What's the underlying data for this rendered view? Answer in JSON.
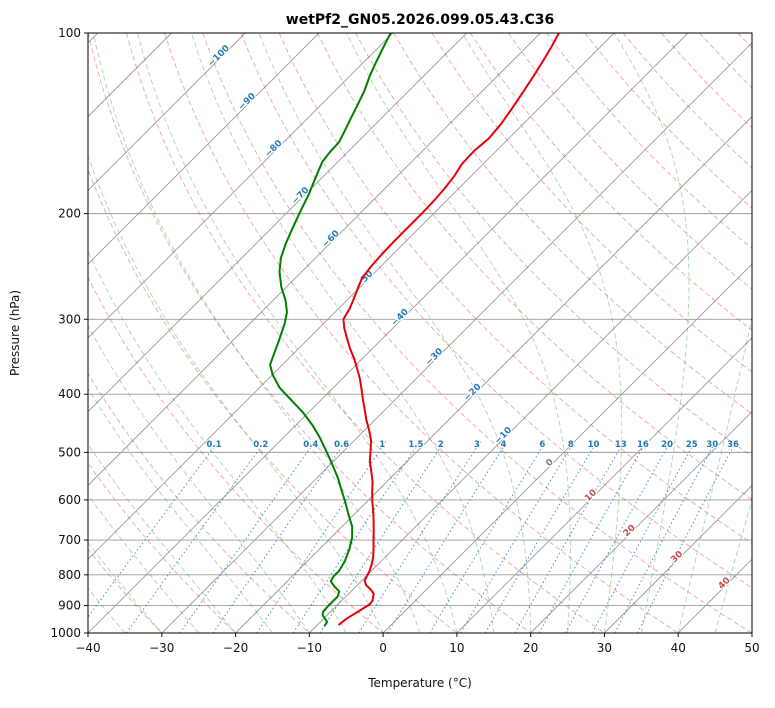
{
  "title": "wetPf2_GN05.2026.099.05.43.C36",
  "chart_data": {
    "type": "line",
    "variant": "skew-t-log-p",
    "title": "wetPf2_GN05.2026.099.05.43.C36",
    "xlabel": "Temperature (°C)",
    "ylabel": "Pressure (hPa)",
    "xlim": [
      -40,
      50
    ],
    "pressure_lim": [
      100,
      1000
    ],
    "skew_deg": 45,
    "x_ticks": [
      -40,
      -30,
      -20,
      -10,
      0,
      10,
      20,
      30,
      40,
      50
    ],
    "pressure_ticks": [
      100,
      200,
      300,
      400,
      500,
      600,
      700,
      800,
      900,
      1000
    ],
    "grid_color": "#9b9b9b",
    "isotherms": {
      "start": -120,
      "end": 50,
      "step": 10,
      "color": "#9b9b9b"
    },
    "isotherm_labels": [
      {
        "value": -100,
        "p": 110,
        "color": "#2b7bba"
      },
      {
        "value": -90,
        "p": 131,
        "color": "#2b7bba"
      },
      {
        "value": -80,
        "p": 157,
        "color": "#2b7bba"
      },
      {
        "value": -70,
        "p": 188,
        "color": "#2b7bba"
      },
      {
        "value": -60,
        "p": 222,
        "color": "#2b7bba"
      },
      {
        "value": -50,
        "p": 259,
        "color": "#2b7bba"
      },
      {
        "value": -40,
        "p": 300,
        "color": "#2b7bba"
      },
      {
        "value": -30,
        "p": 349,
        "color": "#2b7bba"
      },
      {
        "value": -20,
        "p": 400,
        "color": "#2b7bba"
      },
      {
        "value": -10,
        "p": 472,
        "color": "#2b7bba"
      },
      {
        "value": 0,
        "p": 524,
        "color": "#808080"
      },
      {
        "value": 10,
        "p": 594,
        "color": "#c0504d"
      },
      {
        "value": 20,
        "p": 680,
        "color": "#c0504d"
      },
      {
        "value": 30,
        "p": 752,
        "color": "#c0504d"
      },
      {
        "value": 40,
        "p": 832,
        "color": "#c0504d"
      }
    ],
    "dry_adiabats": {
      "start": -30,
      "end": 210,
      "step": 10,
      "color": "rgba(214,39,40,0.38)"
    },
    "moist_adiabats": {
      "start": -40,
      "end": 75,
      "step": 5,
      "color": "rgba(44,160,44,0.38)"
    },
    "mixing_ratios": {
      "values": [
        0.1,
        0.2,
        0.4,
        0.6,
        1,
        1.5,
        2,
        3,
        4,
        6,
        8,
        10,
        13,
        16,
        20,
        25,
        30,
        36
      ],
      "label_pressure": 490,
      "top_pressure": 480,
      "color": "rgba(31,119,180,0.8)",
      "label_color": "#1f77b4"
    },
    "series": [
      {
        "name": "temperature",
        "color": "#e8000b",
        "points": [
          [
            100,
            -57.5
          ],
          [
            105,
            -56.7
          ],
          [
            111,
            -55.9
          ],
          [
            118,
            -55.1
          ],
          [
            126,
            -54.3
          ],
          [
            134,
            -53.6
          ],
          [
            142,
            -53.0
          ],
          [
            150,
            -52.7
          ],
          [
            157,
            -53.0
          ],
          [
            165,
            -52.9
          ],
          [
            173,
            -52.3
          ],
          [
            182,
            -51.9
          ],
          [
            191,
            -51.7
          ],
          [
            200,
            -51.6
          ],
          [
            211,
            -51.6
          ],
          [
            222,
            -51.6
          ],
          [
            234,
            -51.5
          ],
          [
            246,
            -51.3
          ],
          [
            257,
            -50.9
          ],
          [
            267,
            -50.1
          ],
          [
            277,
            -49.3
          ],
          [
            288,
            -48.5
          ],
          [
            300,
            -47.9
          ],
          [
            311,
            -46.5
          ],
          [
            323,
            -44.8
          ],
          [
            336,
            -43.0
          ],
          [
            349,
            -41.1
          ],
          [
            363,
            -39.3
          ],
          [
            377,
            -37.6
          ],
          [
            392,
            -36.0
          ],
          [
            407,
            -34.5
          ],
          [
            424,
            -32.8
          ],
          [
            441,
            -31.2
          ],
          [
            459,
            -29.4
          ],
          [
            478,
            -27.7
          ],
          [
            497,
            -26.4
          ],
          [
            517,
            -25.1
          ],
          [
            538,
            -23.5
          ],
          [
            560,
            -21.9
          ],
          [
            582,
            -20.6
          ],
          [
            605,
            -19.2
          ],
          [
            629,
            -17.7
          ],
          [
            652,
            -16.4
          ],
          [
            676,
            -15.1
          ],
          [
            700,
            -13.9
          ],
          [
            724,
            -12.7
          ],
          [
            748,
            -11.6
          ],
          [
            770,
            -10.8
          ],
          [
            790,
            -10.2
          ],
          [
            805,
            -9.9
          ],
          [
            818,
            -9.6
          ],
          [
            832,
            -8.8
          ],
          [
            846,
            -7.6
          ],
          [
            860,
            -6.6
          ],
          [
            872,
            -6.2
          ],
          [
            884,
            -5.8
          ],
          [
            896,
            -5.7
          ],
          [
            908,
            -6.0
          ],
          [
            921,
            -6.3
          ],
          [
            934,
            -6.6
          ],
          [
            947,
            -6.9
          ],
          [
            958,
            -7.0
          ],
          [
            968,
            -7.1
          ]
        ]
      },
      {
        "name": "dewpoint",
        "color": "#007f00",
        "points": [
          [
            100,
            -80.3
          ],
          [
            106,
            -79.3
          ],
          [
            112,
            -78.3
          ],
          [
            118,
            -77.3
          ],
          [
            125,
            -76.0
          ],
          [
            132,
            -75.0
          ],
          [
            139,
            -74.1
          ],
          [
            146,
            -73.2
          ],
          [
            152,
            -72.5
          ],
          [
            158,
            -72.4
          ],
          [
            164,
            -72.1
          ],
          [
            174,
            -70.9
          ],
          [
            186,
            -69.5
          ],
          [
            200,
            -68.2
          ],
          [
            212,
            -67.1
          ],
          [
            224,
            -66.0
          ],
          [
            237,
            -64.7
          ],
          [
            250,
            -63.0
          ],
          [
            265,
            -60.7
          ],
          [
            279,
            -58.3
          ],
          [
            292,
            -56.5
          ],
          [
            306,
            -55.2
          ],
          [
            325,
            -53.8
          ],
          [
            343,
            -52.6
          ],
          [
            357,
            -51.7
          ],
          [
            371,
            -50.0
          ],
          [
            390,
            -47.3
          ],
          [
            408,
            -44.2
          ],
          [
            428,
            -40.9
          ],
          [
            450,
            -37.8
          ],
          [
            473,
            -35.0
          ],
          [
            500,
            -32.1
          ],
          [
            525,
            -29.6
          ],
          [
            552,
            -27.1
          ],
          [
            578,
            -25.0
          ],
          [
            606,
            -22.8
          ],
          [
            634,
            -20.8
          ],
          [
            665,
            -18.6
          ],
          [
            694,
            -17.1
          ],
          [
            726,
            -15.9
          ],
          [
            760,
            -14.9
          ],
          [
            788,
            -14.4
          ],
          [
            805,
            -14.4
          ],
          [
            820,
            -14.1
          ],
          [
            838,
            -12.8
          ],
          [
            852,
            -11.6
          ],
          [
            870,
            -11.1
          ],
          [
            888,
            -11.1
          ],
          [
            906,
            -11.1
          ],
          [
            922,
            -11.0
          ],
          [
            934,
            -10.6
          ],
          [
            947,
            -9.8
          ],
          [
            958,
            -9.1
          ],
          [
            966,
            -9.0
          ],
          [
            972,
            -8.9
          ]
        ]
      }
    ]
  }
}
